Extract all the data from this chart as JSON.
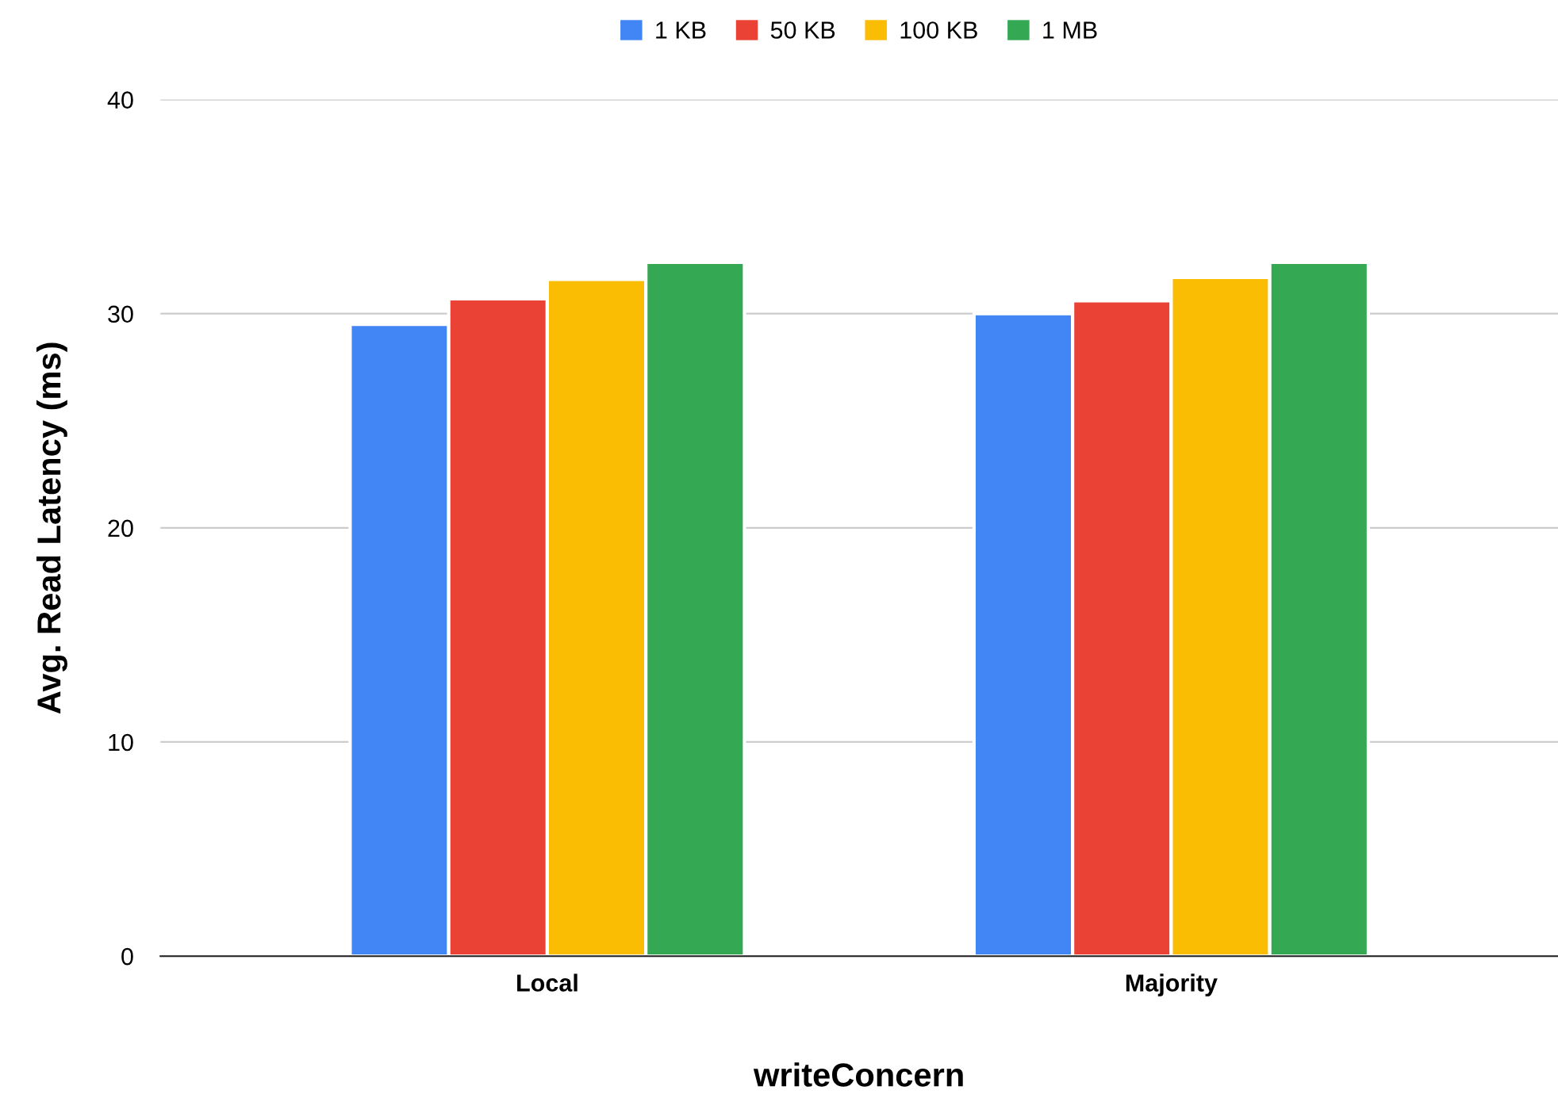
{
  "chart_data": {
    "type": "bar",
    "xlabel": "writeConcern",
    "ylabel": "Avg. Read Latency (ms)",
    "categories": [
      "Local",
      "Majority"
    ],
    "series": [
      {
        "name": "1 KB",
        "color": "#4285f4",
        "values": [
          29.5,
          30.0
        ]
      },
      {
        "name": "50 KB",
        "color": "#ea4335",
        "values": [
          30.7,
          30.6
        ]
      },
      {
        "name": "100 KB",
        "color": "#fbbc04",
        "values": [
          31.6,
          31.7
        ]
      },
      {
        "name": "1 MB",
        "color": "#34a853",
        "values": [
          32.4,
          32.4
        ]
      }
    ],
    "ylim": [
      0,
      40
    ],
    "yticks": [
      0,
      10,
      20,
      30,
      40
    ],
    "grid": "y",
    "legend": "top"
  }
}
